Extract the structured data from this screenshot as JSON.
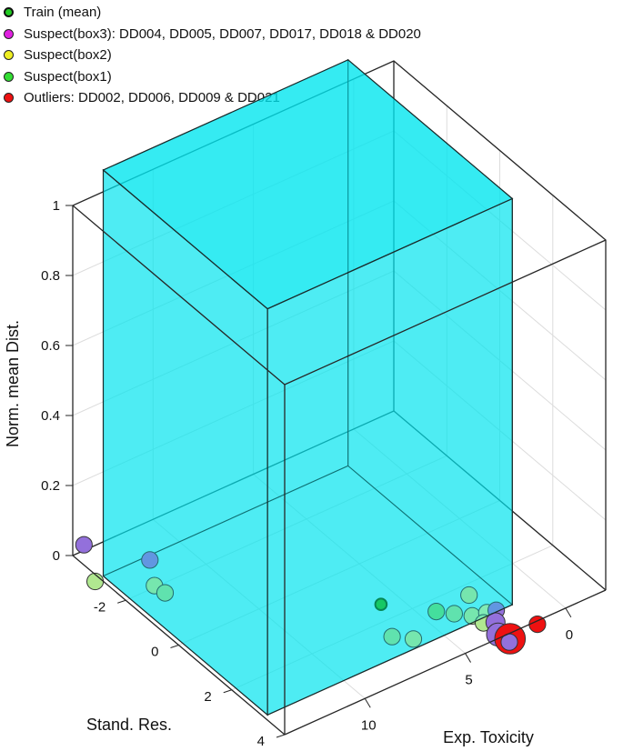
{
  "chart_data": {
    "type": "scatter",
    "legend_placement": "top-left",
    "legend": [
      {
        "label": "Train (mean)",
        "color": "#22cc22",
        "edge": "#111111"
      },
      {
        "label": "Suspect(box3): DD004, DD005, DD007, DD017, DD018 & DD020",
        "color": "#e020e0",
        "edge": "#222222"
      },
      {
        "label": "Suspect(box2)",
        "color": "#eeee22",
        "edge": "#222222"
      },
      {
        "label": "Suspect(box1)",
        "color": "#33dd33",
        "edge": "#222222"
      },
      {
        "label": "Outliers: DD002, DD006, DD009 & DD021",
        "color": "#ee1111",
        "edge": "#222222"
      }
    ],
    "axes": {
      "x": {
        "label": "Stand. Res.",
        "ticks": [
          -2,
          0,
          2,
          4
        ]
      },
      "y": {
        "label": "Exp. Toxicity",
        "ticks": [
          0,
          5,
          10
        ]
      },
      "z": {
        "label": "Norm. mean Dist.",
        "ticks": [
          "0",
          "0.2",
          "0.4",
          "0.6",
          "0.8",
          "1"
        ],
        "lim": [
          0,
          1
        ]
      }
    },
    "box": {
      "color": "#00e5ee",
      "opacity": 0.6
    },
    "points": [
      {
        "sr": -3.2,
        "tox": 14.5,
        "dist": 0.09,
        "color": "#9370db",
        "size": 1.3
      },
      {
        "sr": -2.7,
        "tox": 14.6,
        "dist": 0.02,
        "color": "#b0e890",
        "size": 1.3
      },
      {
        "sr": -2.3,
        "tox": 12.4,
        "dist": 0.05,
        "color": "#9370db",
        "size": 1.3
      },
      {
        "sr": -1.9,
        "tox": 12.7,
        "dist": 0.01,
        "color": "#b0e890",
        "size": 1.3
      },
      {
        "sr": -1.65,
        "tox": 12.5,
        "dist": 0.0,
        "color": "#8fe28f",
        "size": 1.3
      },
      {
        "sr": 1.5,
        "tox": 5.9,
        "dist": 0.0,
        "color": "#22bb22",
        "size": 0.9,
        "train": true
      },
      {
        "sr": 2.6,
        "tox": 6.8,
        "dist": 0.0,
        "color": "#8fe28f",
        "size": 1.3
      },
      {
        "sr": 2.95,
        "tox": 6.2,
        "dist": 0.0,
        "color": "#b0e890",
        "size": 1.3
      },
      {
        "sr": 2.45,
        "tox": 4.4,
        "dist": 0.0,
        "color": "#66dd77",
        "size": 1.3
      },
      {
        "sr": 2.75,
        "tox": 3.9,
        "dist": 0.0,
        "color": "#8fe28f",
        "size": 1.3
      },
      {
        "sr": 3.05,
        "tox": 3.4,
        "dist": 0.0,
        "color": "#b0e890",
        "size": 1.3
      },
      {
        "sr": 2.4,
        "tox": 2.7,
        "dist": 0.0,
        "color": "#b0e890",
        "size": 1.3
      },
      {
        "sr": 3.15,
        "tox": 2.8,
        "dist": 0.0,
        "color": "#c0ef9a",
        "size": 1.3
      },
      {
        "sr": 3.4,
        "tox": 3.3,
        "dist": 0.0,
        "color": "#b0e890",
        "size": 1.3
      },
      {
        "sr": 3.2,
        "tox": 2.4,
        "dist": 0.0,
        "color": "#9370db",
        "size": 1.3
      },
      {
        "sr": 3.55,
        "tox": 2.9,
        "dist": 0.0,
        "color": "#9370db",
        "size": 1.5
      },
      {
        "sr": 3.95,
        "tox": 3.3,
        "dist": 0.0,
        "color": "#9370db",
        "size": 1.8
      },
      {
        "sr": 4.3,
        "tox": 3.2,
        "dist": 0.0,
        "color": "#9370db",
        "size": 1.3
      },
      {
        "sr": 4.25,
        "tox": 3.1,
        "dist": 0.0,
        "color": "#ee1111",
        "size": 2.4
      },
      {
        "sr": 4.15,
        "tox": 1.6,
        "dist": 0.0,
        "color": "#ee1111",
        "size": 1.3
      }
    ]
  }
}
